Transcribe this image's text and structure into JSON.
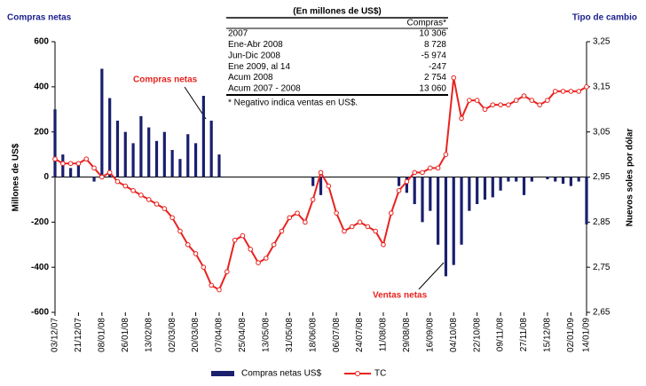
{
  "chart_data": {
    "type": "bar-line",
    "ylabel_top": "Compras netas",
    "y2label_top": "Tipo de cambio",
    "ylabel": "Millones de US$",
    "y2label": "Nuevos soles por dólar",
    "categories": [
      "03/12/07",
      null,
      null,
      "21/12/07",
      null,
      null,
      "08/01/08",
      null,
      null,
      "26/01/08",
      null,
      null,
      "13/02/08",
      null,
      null,
      "02/03/08",
      null,
      null,
      "20/03/08",
      null,
      null,
      "07/04/08",
      null,
      null,
      "25/04/08",
      null,
      null,
      "13/05/08",
      null,
      null,
      "31/05/08",
      null,
      null,
      "18/06/08",
      null,
      null,
      "06/07/08",
      null,
      null,
      "24/07/08",
      null,
      null,
      "11/08/08",
      null,
      null,
      "29/08/08",
      null,
      null,
      "16/09/08",
      null,
      null,
      "04/10/08",
      null,
      null,
      "22/10/08",
      null,
      null,
      "09/11/08",
      null,
      null,
      "27/11/08",
      null,
      null,
      "15/12/08",
      null,
      null,
      "02/01/09",
      null,
      "14/01/09"
    ],
    "series": [
      {
        "name": "Compras netas US$",
        "color": "#1a1f6e",
        "kind": "bar",
        "values": [
          300,
          100,
          40,
          60,
          0,
          -20,
          480,
          350,
          250,
          200,
          150,
          270,
          220,
          160,
          200,
          120,
          80,
          190,
          150,
          360,
          250,
          100,
          0,
          0,
          0,
          0,
          0,
          0,
          0,
          0,
          0,
          0,
          0,
          -40,
          -80,
          0,
          0,
          0,
          0,
          0,
          0,
          0,
          0,
          0,
          -40,
          -70,
          -120,
          -200,
          -150,
          -300,
          -440,
          -390,
          -300,
          -150,
          -120,
          -100,
          -90,
          -60,
          -20,
          -20,
          -80,
          -20,
          0,
          -10,
          -20,
          -30,
          -40,
          -20,
          -210
        ]
      },
      {
        "name": "TC",
        "color": "#e8231f",
        "kind": "line",
        "axis": "y2",
        "values": [
          2.99,
          2.98,
          2.98,
          2.98,
          2.99,
          2.97,
          2.95,
          2.96,
          2.94,
          2.93,
          2.92,
          2.91,
          2.9,
          2.89,
          2.88,
          2.86,
          2.83,
          2.8,
          2.78,
          2.75,
          2.71,
          2.7,
          2.74,
          2.81,
          2.82,
          2.79,
          2.76,
          2.77,
          2.8,
          2.83,
          2.86,
          2.87,
          2.85,
          2.9,
          2.96,
          2.93,
          2.87,
          2.83,
          2.84,
          2.85,
          2.84,
          2.83,
          2.8,
          2.87,
          2.92,
          2.94,
          2.96,
          2.96,
          2.97,
          2.97,
          3.0,
          3.17,
          3.08,
          3.12,
          3.12,
          3.1,
          3.11,
          3.11,
          3.11,
          3.12,
          3.13,
          3.12,
          3.11,
          3.12,
          3.14,
          3.14,
          3.14,
          3.14,
          3.15
        ]
      }
    ],
    "ylim": [
      -600,
      600
    ],
    "yticks": [
      -600,
      -400,
      -200,
      0,
      200,
      400,
      600
    ],
    "y2lim": [
      2.65,
      3.25
    ],
    "y2ticks": [
      {
        "value": 2.65,
        "label": "2,65"
      },
      {
        "value": 2.75,
        "label": "2,75"
      },
      {
        "value": 2.85,
        "label": "2,85"
      },
      {
        "value": 2.95,
        "label": "2,95"
      },
      {
        "value": 3.05,
        "label": "3,05"
      },
      {
        "value": 3.15,
        "label": "3,15"
      },
      {
        "value": 3.25,
        "label": "3,25"
      }
    ],
    "annotations": [
      "Compras netas",
      "Ventas netas"
    ],
    "table": {
      "title": "(En millones de US$)",
      "column": "Compras*",
      "rows": [
        [
          "2007",
          "10 306"
        ],
        [
          "Ene-Abr 2008",
          "8 728"
        ],
        [
          "Jun-Dic 2008",
          "-5 974"
        ],
        [
          "Ene 2009, al 14",
          "-247"
        ],
        [
          "Acum 2008",
          "2 754"
        ],
        [
          "Acum 2007 - 2008",
          "13 060"
        ]
      ],
      "note": "* Negativo indica ventas en US$."
    }
  }
}
